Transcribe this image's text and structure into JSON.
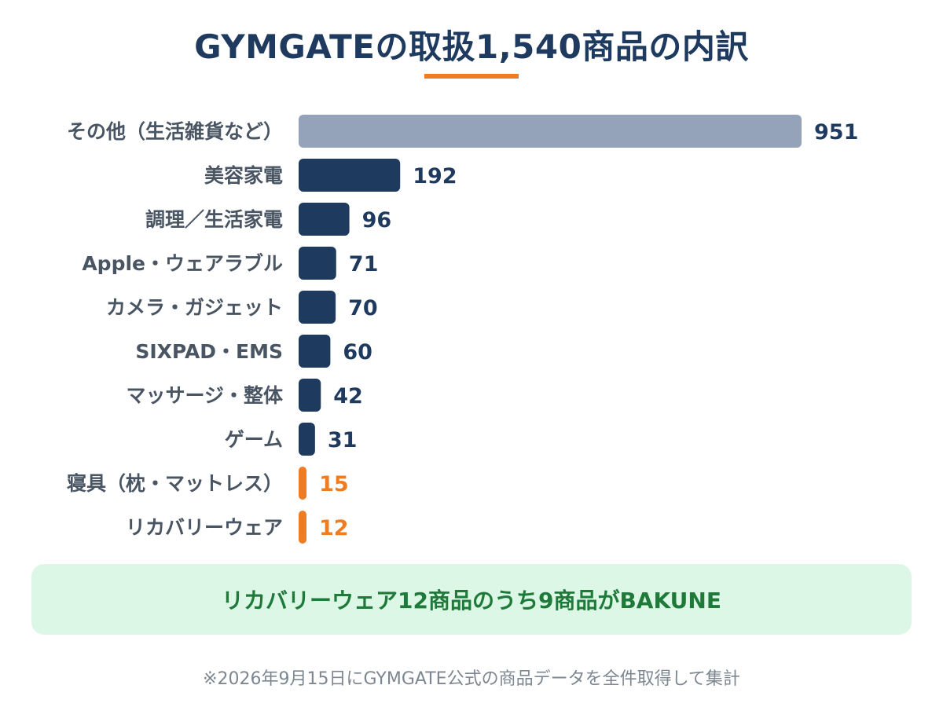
{
  "title": "GYMGATEの取扱1,540商品の内訳",
  "colors": {
    "title": "#1f3a5f",
    "accent": "#f07c22",
    "bar_primary": "#1f3a5f",
    "bar_other": "#95a3ba",
    "bar_highlight": "#f07c22",
    "callout_bg": "#dcf7e6",
    "callout_text": "#1f7a3a",
    "footnote": "#7d8791"
  },
  "chart_data": {
    "type": "bar",
    "orientation": "horizontal",
    "title": "GYMGATEの取扱1,540商品の内訳",
    "xlabel": "",
    "ylabel": "",
    "xlim": [
      0,
      951
    ],
    "grid": false,
    "categories": [
      "その他（生活雑貨など）",
      "美容家電",
      "調理／生活家電",
      "Apple・ウェアラブル",
      "カメラ・ガジェット",
      "SIXPAD・EMS",
      "マッサージ・整体",
      "ゲーム",
      "寝具（枕・マットレス）",
      "リカバリーウェア"
    ],
    "values": [
      951,
      192,
      96,
      71,
      70,
      60,
      42,
      31,
      15,
      12
    ],
    "bar_colors": [
      "#95a3ba",
      "#1f3a5f",
      "#1f3a5f",
      "#1f3a5f",
      "#1f3a5f",
      "#1f3a5f",
      "#1f3a5f",
      "#1f3a5f",
      "#f07c22",
      "#f07c22"
    ],
    "value_label_colors": [
      "#1f3a5f",
      "#1f3a5f",
      "#1f3a5f",
      "#1f3a5f",
      "#1f3a5f",
      "#1f3a5f",
      "#1f3a5f",
      "#1f3a5f",
      "#f07c22",
      "#f07c22"
    ]
  },
  "callout": {
    "text": "リカバリーウェア12商品のうち9商品がBAKUNE"
  },
  "footnote": "※2026年9月15日にGYMGATE公式の商品データを全件取得して集計"
}
